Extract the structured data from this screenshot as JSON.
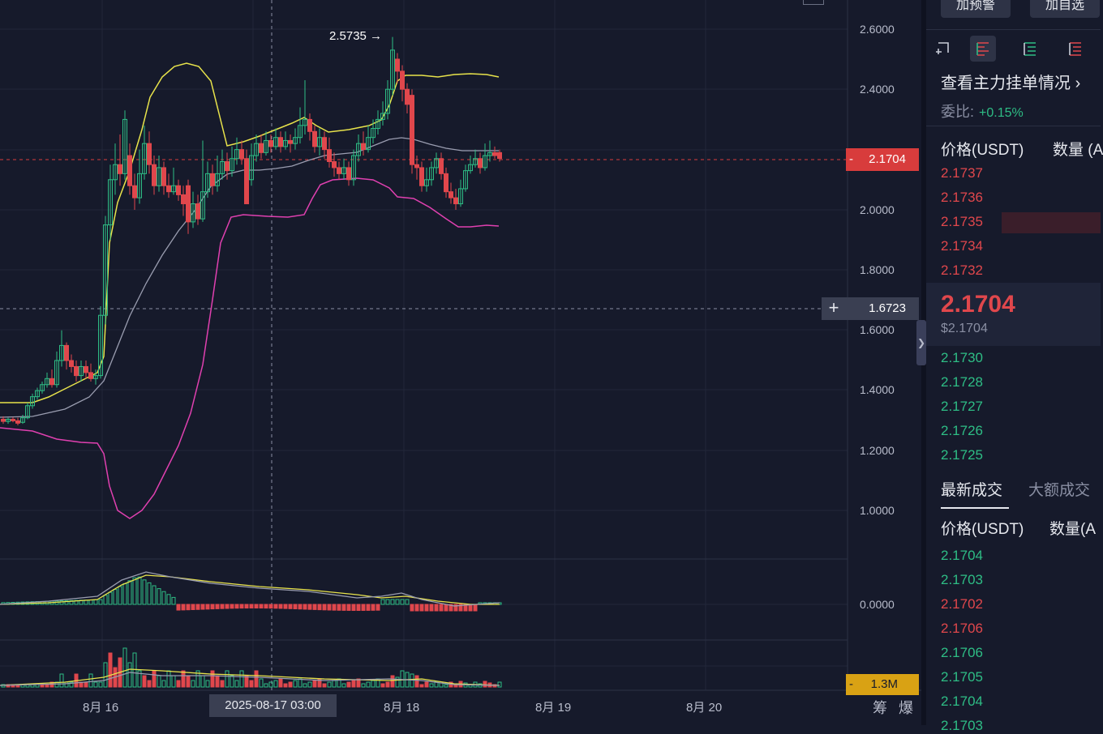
{
  "chart": {
    "price_ticks": [
      "2.6000",
      "2.4000",
      "2.0000",
      "1.8000",
      "1.6000",
      "1.4000",
      "1.2000",
      "1.0000"
    ],
    "macd_zero": "0.0000",
    "x_labels": [
      "8月 16",
      "8月 18",
      "8月 19",
      "8月 20"
    ],
    "crosshair_time": "2025-08-17 03:00",
    "last_price": "2.1704",
    "crosshair_price": "1.6723",
    "high_label": "2.5735 →",
    "volume_label": "1.3M",
    "bottom_buttons": [
      "筹",
      "爆"
    ],
    "colors": {
      "up": "#2ebd85",
      "down": "#e0474c",
      "boll_upper": "#e8e34b",
      "boll_mid": "#9a9db0",
      "boll_lower": "#e040b0"
    }
  },
  "sidebar": {
    "top_buttons": [
      "加预警",
      "加自选"
    ],
    "layout_icons": [
      "order-book-both-icon",
      "order-book-buy-icon",
      "order-book-sell-icon"
    ],
    "main_orders_link": "查看主力挂单情况",
    "ratio_label": "委比:",
    "ratio_value": "+0.15%",
    "headers": {
      "price": "价格(USDT)",
      "qty": "数量 (A"
    },
    "asks": [
      "2.1737",
      "2.1736",
      "2.1735",
      "2.1734",
      "2.1732"
    ],
    "mid_price": "2.1704",
    "mid_usd": "$2.1704",
    "bids": [
      "2.1730",
      "2.1728",
      "2.1727",
      "2.1726",
      "2.1725"
    ],
    "trade_tabs": [
      "最新成交",
      "大额成交"
    ],
    "trade_headers": {
      "price": "价格(USDT)",
      "qty": "数量(A"
    },
    "trades": [
      {
        "price": "2.1704",
        "side": "bid"
      },
      {
        "price": "2.1703",
        "side": "bid"
      },
      {
        "price": "2.1702",
        "side": "ask"
      },
      {
        "price": "2.1706",
        "side": "ask"
      },
      {
        "price": "2.1706",
        "side": "bid"
      },
      {
        "price": "2.1705",
        "side": "bid"
      },
      {
        "price": "2.1704",
        "side": "bid"
      },
      {
        "price": "2.1703",
        "side": "bid"
      }
    ]
  }
}
